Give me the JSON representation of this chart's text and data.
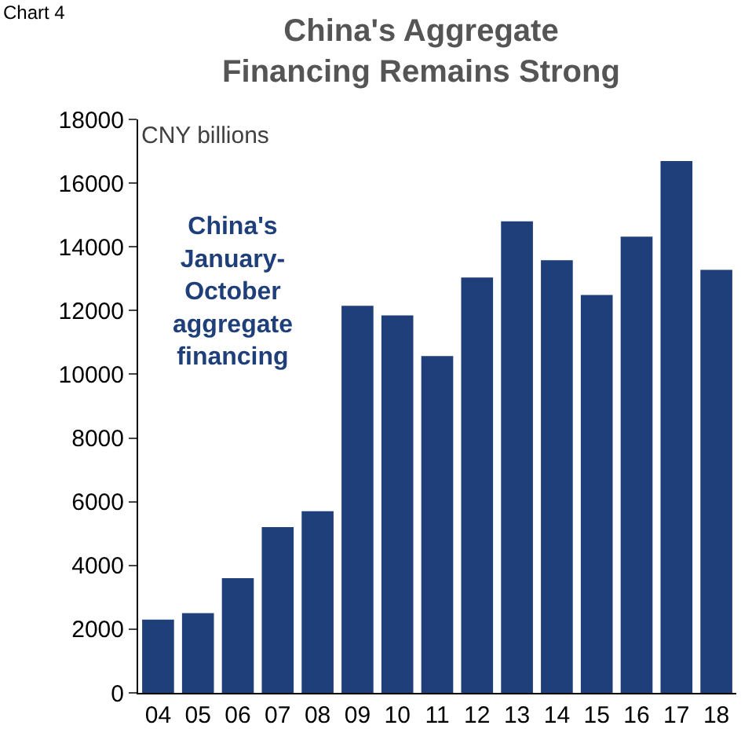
{
  "chart_data": {
    "type": "bar",
    "title": "China's Aggregate Financing Remains Strong",
    "categories": [
      "04",
      "05",
      "06",
      "07",
      "08",
      "09",
      "10",
      "11",
      "12",
      "13",
      "14",
      "15",
      "16",
      "17",
      "18"
    ],
    "values": [
      2300,
      2500,
      3600,
      5200,
      5700,
      12150,
      11850,
      10570,
      13040,
      14800,
      13580,
      12490,
      14320,
      16690,
      13280
    ],
    "color": "#1f3f7a",
    "ylim": [
      0,
      18000
    ],
    "yticks": [
      0,
      2000,
      4000,
      6000,
      8000,
      10000,
      12000,
      14000,
      16000,
      18000
    ],
    "grid": false,
    "legend": false,
    "annotations": [
      "Chart 4",
      "CNY billions",
      "China's January-October aggregate financing"
    ]
  }
}
